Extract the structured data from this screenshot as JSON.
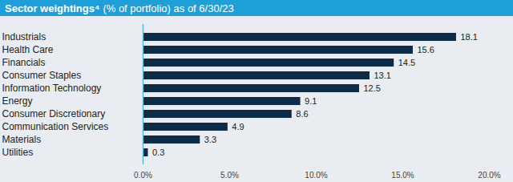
{
  "chart_data": {
    "type": "bar",
    "orientation": "horizontal",
    "title": "Sector weightings⁴",
    "subtitle": "(% of portfolio) as of 6/30/23",
    "categories": [
      "Industrials",
      "Health Care",
      "Financials",
      "Consumer Staples",
      "Information Technology",
      "Energy",
      "Consumer Discretionary",
      "Communication Services",
      "Materials",
      "Utilities"
    ],
    "values": [
      18.1,
      15.6,
      14.5,
      13.1,
      12.5,
      9.1,
      8.6,
      4.9,
      3.3,
      0.3
    ],
    "color": "#0d2b45",
    "xlim": [
      0,
      20
    ],
    "xticks": [
      {
        "value": 0,
        "label": "0.0%"
      },
      {
        "value": 5,
        "label": "5.0%"
      },
      {
        "value": 10,
        "label": "10.0%"
      },
      {
        "value": 15,
        "label": "15.0%"
      },
      {
        "value": 20,
        "label": "20.0%"
      }
    ],
    "grid": false,
    "data_labels": true
  }
}
